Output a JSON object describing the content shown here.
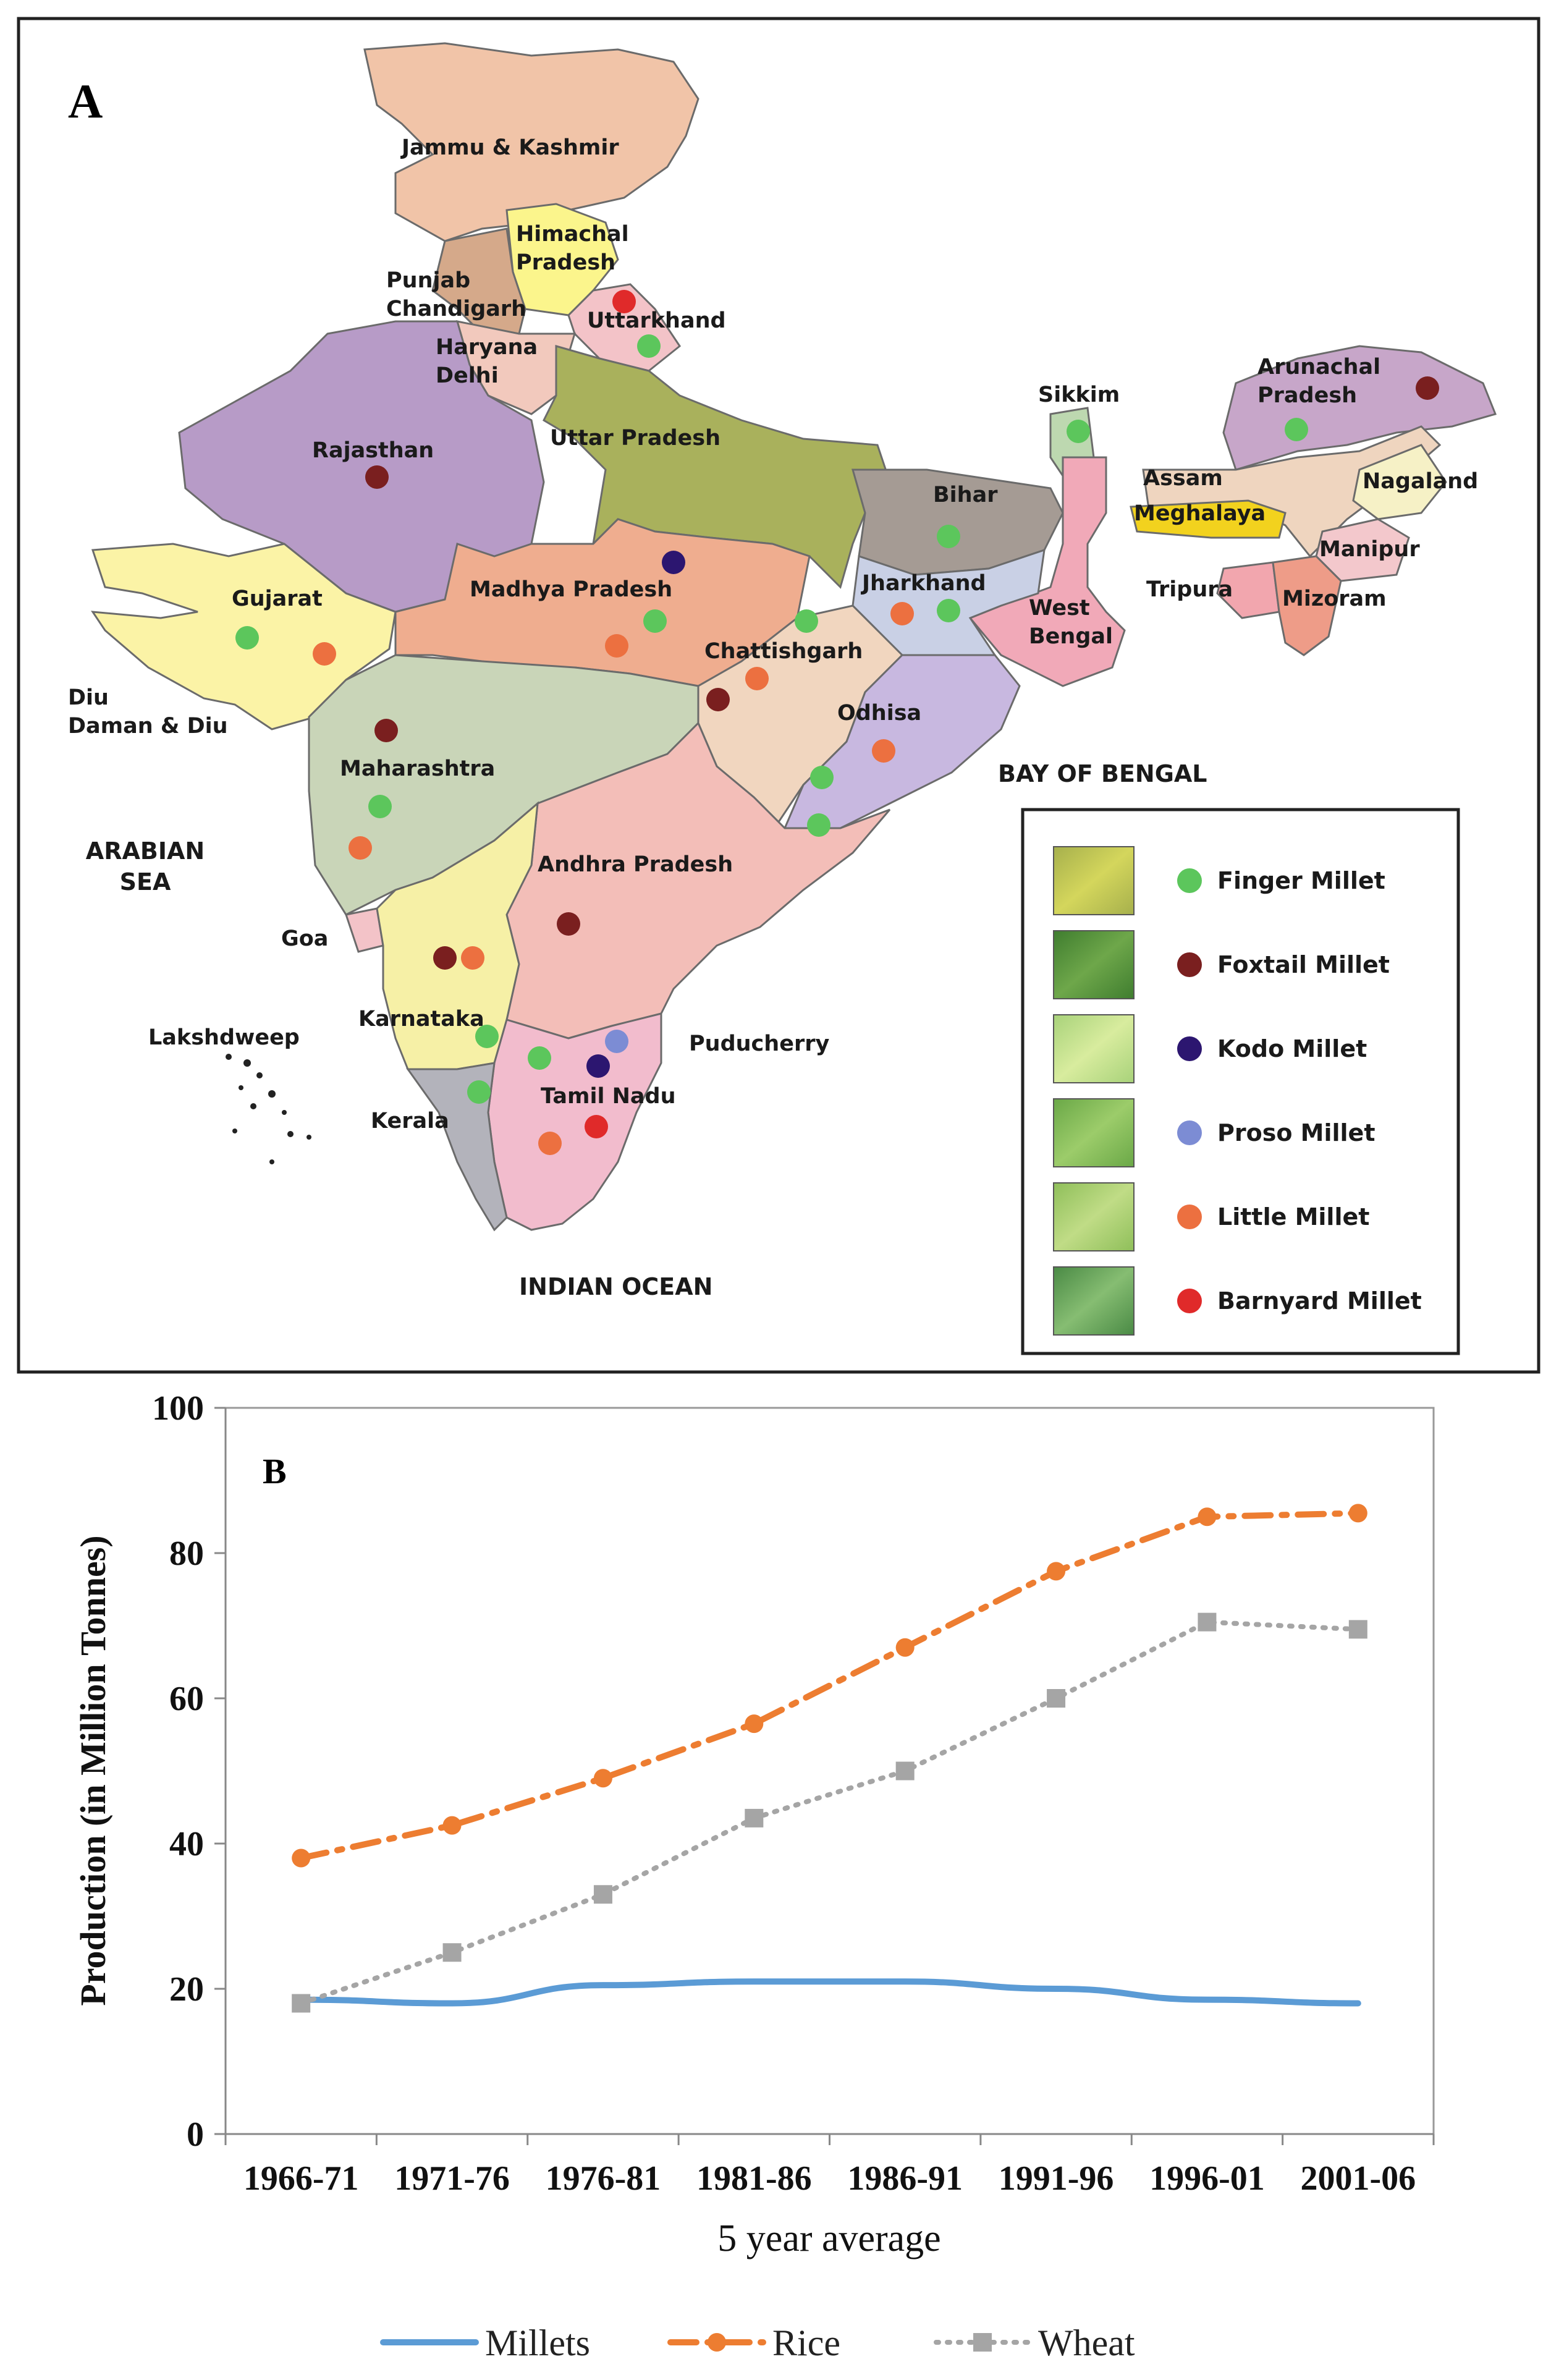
{
  "panel_a": {
    "letter": "A",
    "states": [
      {
        "name": "Jammu & Kashmir"
      },
      {
        "name": "Himachal\nPradesh"
      },
      {
        "name": "Punjab\nChandigarh"
      },
      {
        "name": "Uttarkhand"
      },
      {
        "name": "Haryana\nDelhi"
      },
      {
        "name": "Rajasthan"
      },
      {
        "name": "Uttar Pradesh"
      },
      {
        "name": "Bihar"
      },
      {
        "name": "Sikkim"
      },
      {
        "name": "Arunachal\nPradesh"
      },
      {
        "name": "Assam"
      },
      {
        "name": "Nagaland"
      },
      {
        "name": "Meghalaya"
      },
      {
        "name": "Manipur"
      },
      {
        "name": "Tripura"
      },
      {
        "name": "Mizoram"
      },
      {
        "name": "Gujarat"
      },
      {
        "name": "Madhya Pradesh"
      },
      {
        "name": "Jharkhand"
      },
      {
        "name": "West\nBengal"
      },
      {
        "name": "Chattishgarh"
      },
      {
        "name": "Odhisa"
      },
      {
        "name": "Diu\nDaman & Diu"
      },
      {
        "name": "Maharashtra"
      },
      {
        "name": "Andhra Pradesh"
      },
      {
        "name": "Goa"
      },
      {
        "name": "Karnataka"
      },
      {
        "name": "Puducherry"
      },
      {
        "name": "Tamil Nadu"
      },
      {
        "name": "Kerala"
      },
      {
        "name": "Lakshdweep"
      }
    ],
    "seas": [
      "ARABIAN\nSEA",
      "BAY OF BENGAL",
      "INDIAN OCEAN"
    ],
    "legend": [
      {
        "label": "Finger Millet",
        "color": "#5cc65c"
      },
      {
        "label": "Foxtail Millet",
        "color": "#7a1f1f"
      },
      {
        "label": "Kodo Millet",
        "color": "#2c1670"
      },
      {
        "label": "Proso Millet",
        "color": "#7c8cd4"
      },
      {
        "label": "Little Millet",
        "color": "#ec7040"
      },
      {
        "label": "Barnyard Millet",
        "color": "#e02a2a"
      }
    ]
  },
  "panel_b": {
    "letter": "B",
    "chart_data": {
      "type": "line",
      "title": "",
      "xlabel": "5 year average",
      "ylabel": "Production (in Million Tonnes)",
      "categories": [
        "1966-71",
        "1971-76",
        "1976-81",
        "1981-86",
        "1986-91",
        "1991-96",
        "1996-01",
        "2001-06"
      ],
      "ylim": [
        0,
        100
      ],
      "yticks": [
        0,
        20,
        40,
        60,
        80,
        100
      ],
      "grid": false,
      "legend_position": "bottom",
      "series": [
        {
          "name": "Millets",
          "color": "#5b9bd5",
          "style": "solid",
          "marker": "none",
          "values": [
            18.5,
            18,
            20.5,
            21,
            21,
            20,
            18.5,
            18
          ]
        },
        {
          "name": "Rice",
          "color": "#ed7d31",
          "style": "dash-dot",
          "marker": "circle",
          "values": [
            38,
            42.5,
            49,
            56.5,
            67,
            77.5,
            85,
            85.5
          ]
        },
        {
          "name": "Wheat",
          "color": "#a5a5a5",
          "style": "dotted",
          "marker": "square",
          "values": [
            18,
            25,
            33,
            43.5,
            50,
            60,
            70.5,
            69.5
          ]
        }
      ]
    }
  }
}
